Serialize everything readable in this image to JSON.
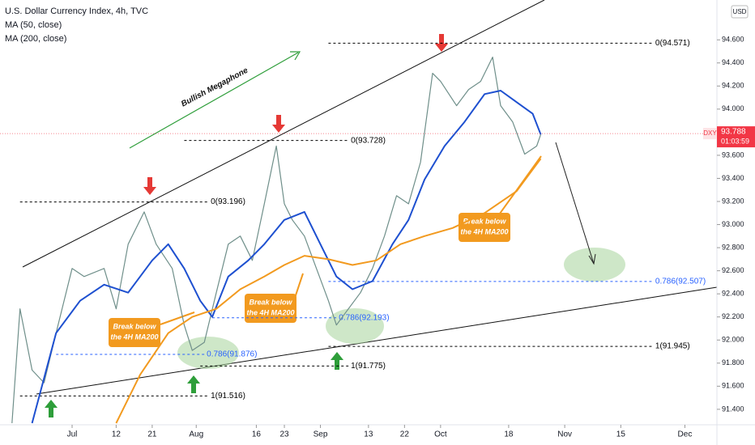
{
  "chart_data": {
    "type": "line",
    "title": "U.S. Dollar Currency Index, 4h, TVC",
    "currency": "USD",
    "xlim": [
      "Jun 13",
      "Dec 9"
    ],
    "ylim": [
      91.266,
      94.945
    ],
    "grid": false,
    "yticks": [
      {
        "value": 91.4,
        "label": "91.400"
      },
      {
        "value": 91.6,
        "label": "91.600"
      },
      {
        "value": 91.8,
        "label": "91.800"
      },
      {
        "value": 92.0,
        "label": "92.000"
      },
      {
        "value": 92.2,
        "label": "92.200"
      },
      {
        "value": 92.4,
        "label": "92.400"
      },
      {
        "value": 92.6,
        "label": "92.600"
      },
      {
        "value": 92.8,
        "label": "92.800"
      },
      {
        "value": 93.0,
        "label": "93.000"
      },
      {
        "value": 93.2,
        "label": "93.200"
      },
      {
        "value": 93.4,
        "label": "93.400"
      },
      {
        "value": 93.6,
        "label": "93.600"
      },
      {
        "value": 93.8,
        "label": "93.800"
      },
      {
        "value": 94.0,
        "label": "94.000"
      },
      {
        "value": 94.2,
        "label": "94.200"
      },
      {
        "value": 94.4,
        "label": "94.400"
      },
      {
        "value": 94.6,
        "label": "94.600"
      }
    ],
    "xticks": [
      {
        "value": "Jul 1",
        "label": "Jul"
      },
      {
        "value": "Jul 12",
        "label": "12"
      },
      {
        "value": "Jul 21",
        "label": "21"
      },
      {
        "value": "Aug 1",
        "label": "Aug"
      },
      {
        "value": "Aug 16",
        "label": "16"
      },
      {
        "value": "Aug 23",
        "label": "23"
      },
      {
        "value": "Sep 1",
        "label": "Sep"
      },
      {
        "value": "Sep 13",
        "label": "13"
      },
      {
        "value": "Sep 22",
        "label": "22"
      },
      {
        "value": "Oct 1",
        "label": "Oct"
      },
      {
        "value": "Oct 18",
        "label": "18"
      },
      {
        "value": "Nov 1",
        "label": "Nov"
      },
      {
        "value": "Nov 15",
        "label": "15"
      },
      {
        "value": "Dec 1",
        "label": "Dec"
      }
    ],
    "series": [
      {
        "name": "DXY",
        "color": "#6f8f8a",
        "x": [
          "Jun 16",
          "Jun 18",
          "Jun 21",
          "Jun 24",
          "Jun 27",
          "Jul 1",
          "Jul 4",
          "Jul 9",
          "Jul 12",
          "Jul 15",
          "Jul 19",
          "Jul 22",
          "Jul 26",
          "Jul 29",
          "Jul 31",
          "Aug 3",
          "Aug 6",
          "Aug 9",
          "Aug 12",
          "Aug 15",
          "Aug 18",
          "Aug 21",
          "Aug 23",
          "Aug 25",
          "Aug 28",
          "Aug 31",
          "Sep 3",
          "Sep 5",
          "Sep 8",
          "Sep 11",
          "Sep 14",
          "Sep 17",
          "Sep 20",
          "Sep 23",
          "Sep 26",
          "Sep 29",
          "Oct 1",
          "Oct 5",
          "Oct 8",
          "Oct 11",
          "Oct 14",
          "Oct 16",
          "Oct 19",
          "Oct 22",
          "Oct 25",
          "Oct 26"
        ],
        "values": [
          91.28,
          92.27,
          91.74,
          91.63,
          92.06,
          92.62,
          92.55,
          92.62,
          92.27,
          92.83,
          93.11,
          92.83,
          92.62,
          92.13,
          91.91,
          91.98,
          92.41,
          92.83,
          92.9,
          92.69,
          93.18,
          93.68,
          93.18,
          93.04,
          92.9,
          92.62,
          92.34,
          92.13,
          92.27,
          92.41,
          92.62,
          92.9,
          93.25,
          93.18,
          93.54,
          94.31,
          94.24,
          94.03,
          94.17,
          94.24,
          94.45,
          94.03,
          93.89,
          93.61,
          93.68,
          93.78
        ]
      },
      {
        "name": "MA (50, close)",
        "color": "#1e50d0",
        "x": [
          "Jun 21",
          "Jun 27",
          "Jul 3",
          "Jul 9",
          "Jul 15",
          "Jul 21",
          "Jul 25",
          "Jul 29",
          "Aug 2",
          "Aug 5",
          "Aug 9",
          "Aug 14",
          "Aug 18",
          "Aug 23",
          "Aug 28",
          "Sep 1",
          "Sep 5",
          "Sep 9",
          "Sep 14",
          "Sep 19",
          "Sep 23",
          "Sep 27",
          "Oct 2",
          "Oct 7",
          "Oct 12",
          "Oct 16",
          "Oct 20",
          "Oct 24",
          "Oct 26"
        ],
        "values": [
          91.28,
          92.06,
          92.34,
          92.48,
          92.41,
          92.69,
          92.83,
          92.62,
          92.34,
          92.2,
          92.55,
          92.69,
          92.83,
          93.04,
          93.11,
          92.83,
          92.55,
          92.44,
          92.51,
          92.83,
          93.04,
          93.39,
          93.68,
          93.89,
          94.13,
          94.16,
          94.06,
          93.96,
          93.78
        ]
      },
      {
        "name": "MA (200, close)",
        "color": "#f29a1f",
        "x": [
          "Jul 12",
          "Jul 18",
          "Jul 25",
          "Jul 31",
          "Aug 6",
          "Aug 12",
          "Aug 18",
          "Aug 23",
          "Aug 28",
          "Sep 3",
          "Sep 9",
          "Sep 15",
          "Sep 21",
          "Sep 27",
          "Oct 4",
          "Oct 12",
          "Oct 20",
          "Oct 26"
        ],
        "values": [
          91.28,
          91.7,
          92.06,
          92.2,
          92.27,
          92.44,
          92.55,
          92.65,
          92.73,
          92.7,
          92.65,
          92.69,
          92.83,
          92.9,
          92.97,
          93.1,
          93.29,
          93.57
        ]
      }
    ],
    "levels": [
      {
        "label": "0(93.196)",
        "value": 93.196,
        "from": "Jun 18",
        "to": "Aug 4",
        "color": "#000000"
      },
      {
        "label": "1(91.516)",
        "value": 91.516,
        "from": "Jun 18",
        "to": "Aug 4",
        "color": "#000000"
      },
      {
        "label": "0.786(91.876)",
        "value": 91.876,
        "from": "Jun 27",
        "to": "Aug 3",
        "color": "#2962ff"
      },
      {
        "label": "0(93.728)",
        "value": 93.728,
        "from": "Jul 29",
        "to": "Sep 8",
        "color": "#000000"
      },
      {
        "label": "1(91.775)",
        "value": 91.775,
        "from": "Aug 2",
        "to": "Sep 8",
        "color": "#000000"
      },
      {
        "label": "0.786(92.193)",
        "value": 92.193,
        "from": "Aug 5",
        "to": "Sep 5",
        "color": "#2962ff"
      },
      {
        "label": "0(94.571)",
        "value": 94.571,
        "from": "Sep 3",
        "to": "Nov 23",
        "color": "#000000"
      },
      {
        "label": "1(91.945)",
        "value": 91.945,
        "from": "Sep 3",
        "to": "Nov 23",
        "color": "#000000"
      },
      {
        "label": "0.786(92.507)",
        "value": 92.507,
        "from": "Sep 3",
        "to": "Nov 23",
        "color": "#2962ff"
      }
    ],
    "last_price": {
      "label": "DXY",
      "value": 93.788,
      "countdown": "01:03:59"
    },
    "notes": [
      [
        "Bullish Megaphone"
      ],
      [
        "Break below",
        "the 4H MA200"
      ],
      [
        "Break below",
        "the 4H MA200"
      ],
      [
        "Break below",
        "the 4H MA200"
      ]
    ]
  }
}
